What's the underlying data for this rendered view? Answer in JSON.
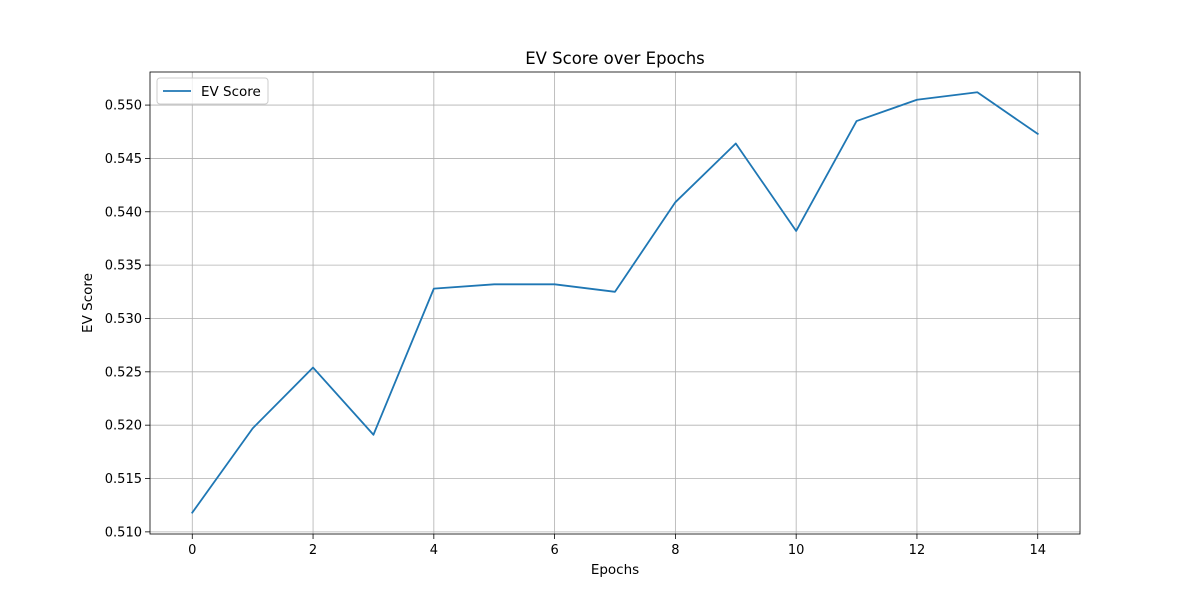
{
  "chart_data": {
    "type": "line",
    "title": "EV Score over Epochs",
    "xlabel": "Epochs",
    "ylabel": "EV Score",
    "x": [
      0,
      1,
      2,
      3,
      4,
      5,
      6,
      7,
      8,
      9,
      10,
      11,
      12,
      13,
      14
    ],
    "series": [
      {
        "name": "EV Score",
        "color": "#1f77b4",
        "values": [
          0.5118,
          0.5197,
          0.5254,
          0.5191,
          0.5328,
          0.5332,
          0.5332,
          0.5325,
          0.5409,
          0.5464,
          0.5382,
          0.5485,
          0.5505,
          0.5512,
          0.5473
        ]
      }
    ],
    "xlim": [
      -0.7,
      14.7
    ],
    "ylim": [
      0.5098,
      0.5531
    ],
    "xticks": [
      0,
      2,
      4,
      6,
      8,
      10,
      12,
      14
    ],
    "xtick_labels": [
      "0",
      "2",
      "4",
      "6",
      "8",
      "10",
      "12",
      "14"
    ],
    "yticks": [
      0.51,
      0.515,
      0.52,
      0.525,
      0.53,
      0.535,
      0.54,
      0.545,
      0.55
    ],
    "ytick_labels": [
      "0.510",
      "0.515",
      "0.520",
      "0.525",
      "0.530",
      "0.535",
      "0.540",
      "0.545",
      "0.550"
    ],
    "grid": true,
    "legend_position": "upper-left"
  }
}
